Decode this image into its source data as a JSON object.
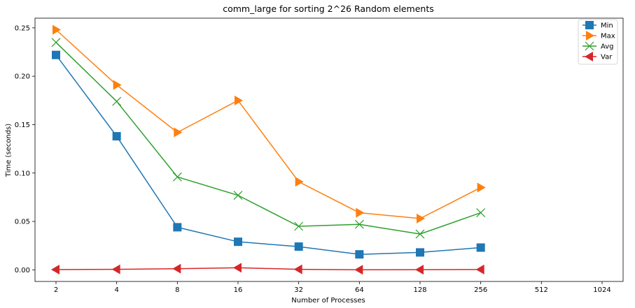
{
  "chart_data": {
    "type": "line",
    "title": "comm_large for sorting 2^26 Random elements",
    "xlabel": "Number of Processes",
    "ylabel": "Time (seconds)",
    "x_scale": "log2",
    "x_ticks": [
      2,
      4,
      8,
      16,
      32,
      64,
      128,
      256,
      512,
      1024
    ],
    "x": [
      2,
      4,
      8,
      16,
      32,
      64,
      128,
      256
    ],
    "xlim": [
      2,
      1024
    ],
    "ylim": [
      -0.012,
      0.26
    ],
    "y_ticks": [
      0.0,
      0.05,
      0.1,
      0.15,
      0.2,
      0.25
    ],
    "y_tick_labels": [
      "0.00",
      "0.05",
      "0.10",
      "0.15",
      "0.20",
      "0.25"
    ],
    "grid": false,
    "legend_position": "top-right",
    "series": [
      {
        "name": "Min",
        "color": "#1f77b4",
        "marker": "square",
        "values": [
          0.222,
          0.138,
          0.044,
          0.029,
          0.024,
          0.016,
          0.018,
          0.023
        ]
      },
      {
        "name": "Max",
        "color": "#ff7f0e",
        "marker": "triangle-right",
        "values": [
          0.248,
          0.191,
          0.142,
          0.175,
          0.091,
          0.059,
          0.053,
          0.085
        ]
      },
      {
        "name": "Avg",
        "color": "#2ca02c",
        "marker": "x",
        "values": [
          0.235,
          0.174,
          0.096,
          0.077,
          0.045,
          0.047,
          0.037,
          0.059
        ]
      },
      {
        "name": "Var",
        "color": "#d62728",
        "marker": "triangle-left",
        "values": [
          0.0003,
          0.0005,
          0.0012,
          0.0022,
          0.0005,
          0.0001,
          0.0002,
          0.0004
        ]
      }
    ]
  }
}
